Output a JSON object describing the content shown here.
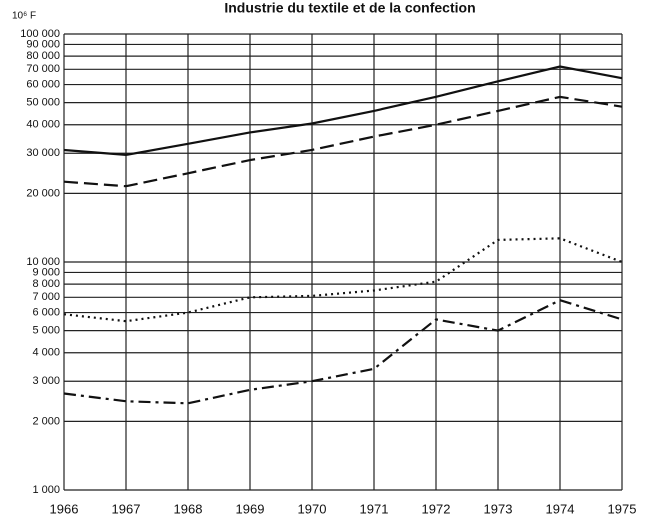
{
  "chart_data": {
    "type": "line",
    "title": "Industrie du textile et de la confection",
    "y_unit": "10⁶ F",
    "x": [
      1966,
      1967,
      1968,
      1969,
      1970,
      1971,
      1972,
      1973,
      1974,
      1975
    ],
    "xlim": [
      1966,
      1975
    ],
    "xticks": [
      1966,
      1967,
      1968,
      1969,
      1970,
      1971,
      1972,
      1973,
      1974,
      1975
    ],
    "ylim": [
      1000,
      100000
    ],
    "log_y": true,
    "grid": true,
    "yticks": [
      {
        "value": 1000,
        "label": "1 000"
      },
      {
        "value": 2000,
        "label": "2 000"
      },
      {
        "value": 3000,
        "label": "3 000"
      },
      {
        "value": 4000,
        "label": "4 000"
      },
      {
        "value": 5000,
        "label": "5 000"
      },
      {
        "value": 6000,
        "label": "6 000"
      },
      {
        "value": 7000,
        "label": "7 000"
      },
      {
        "value": 8000,
        "label": "8 000"
      },
      {
        "value": 9000,
        "label": "9 000"
      },
      {
        "value": 10000,
        "label": "10 000"
      },
      {
        "value": 20000,
        "label": "20 000"
      },
      {
        "value": 30000,
        "label": "30 000"
      },
      {
        "value": 40000,
        "label": "40 000"
      },
      {
        "value": 50000,
        "label": "50 000"
      },
      {
        "value": 60000,
        "label": "60 000"
      },
      {
        "value": 70000,
        "label": "70 000"
      },
      {
        "value": 80000,
        "label": "80 000"
      },
      {
        "value": 90000,
        "label": "90 000"
      },
      {
        "value": 100000,
        "label": "100 000"
      }
    ],
    "series": [
      {
        "color": "#111111",
        "dash": "solid",
        "values": [
          31000,
          29500,
          33000,
          37000,
          40500,
          46000,
          53000,
          62000,
          72000,
          64000
        ]
      },
      {
        "color": "#111111",
        "dash": "dashed",
        "values": [
          22500,
          21500,
          24500,
          28000,
          31000,
          35500,
          40000,
          46000,
          53000,
          48000
        ]
      },
      {
        "color": "#111111",
        "dash": "dotted",
        "values": [
          5900,
          5500,
          6000,
          7000,
          7100,
          7500,
          8200,
          12500,
          12700,
          10000
        ]
      },
      {
        "color": "#111111",
        "dash": "dashdot",
        "values": [
          2650,
          2450,
          2400,
          2750,
          3000,
          3400,
          5600,
          5000,
          6800,
          5600
        ]
      }
    ]
  }
}
